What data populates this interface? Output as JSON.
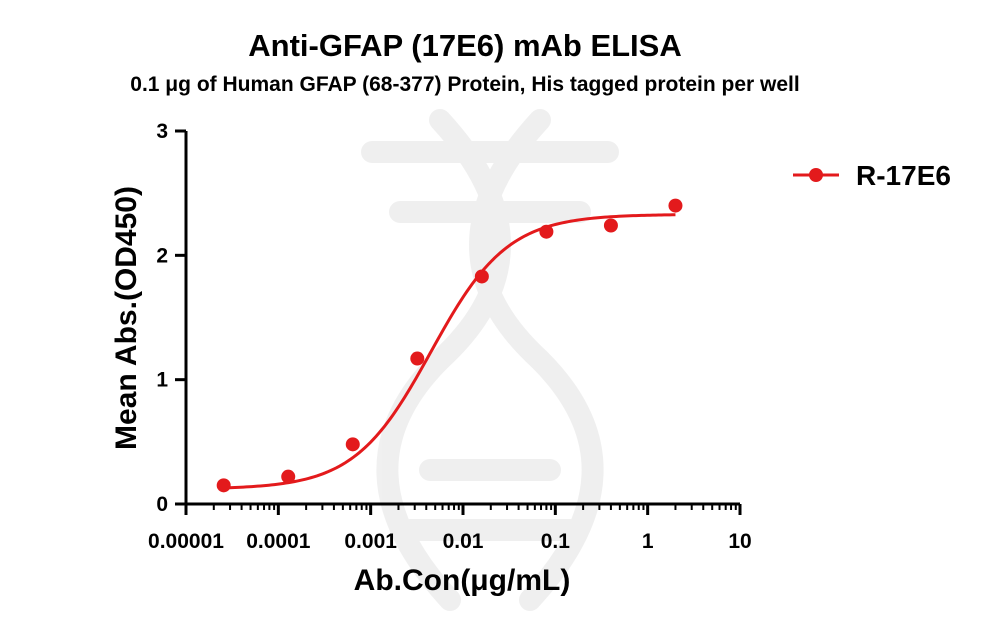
{
  "chart_data": {
    "type": "scatter",
    "title": "Anti-GFAP (17E6) mAb ELISA",
    "subtitle": "0.1  μg of Human GFAP (68-377) Protein, His  tagged protein per well",
    "xlabel": "Ab.Con(μg/mL)",
    "ylabel": "Mean Abs.(OD450)",
    "x_scale": "log",
    "xlim": [
      1e-05,
      10
    ],
    "ylim": [
      0,
      3
    ],
    "x_ticks": [
      1e-05,
      0.0001,
      0.001,
      0.01,
      0.1,
      1,
      10
    ],
    "x_tick_labels": [
      "0.00001",
      "0.0001",
      "0.001",
      "0.01",
      "0.1",
      "1",
      "10"
    ],
    "y_ticks": [
      0,
      1,
      2,
      3
    ],
    "y_tick_labels": [
      "0",
      "1",
      "2",
      "3"
    ],
    "grid": false,
    "legend_position": "top-right",
    "series": [
      {
        "name": "R-17E6",
        "color": "#e31a1c",
        "x": [
          2.56e-05,
          0.000128,
          0.00064,
          0.0032,
          0.016,
          0.08,
          0.4,
          2
        ],
        "y": [
          0.15,
          0.22,
          0.48,
          1.17,
          1.83,
          2.19,
          2.24,
          2.4
        ],
        "fit": {
          "model": "4PL",
          "bottom": 0.12,
          "top": 2.33,
          "ec50": 0.0045,
          "hill": 1.05
        }
      }
    ]
  }
}
